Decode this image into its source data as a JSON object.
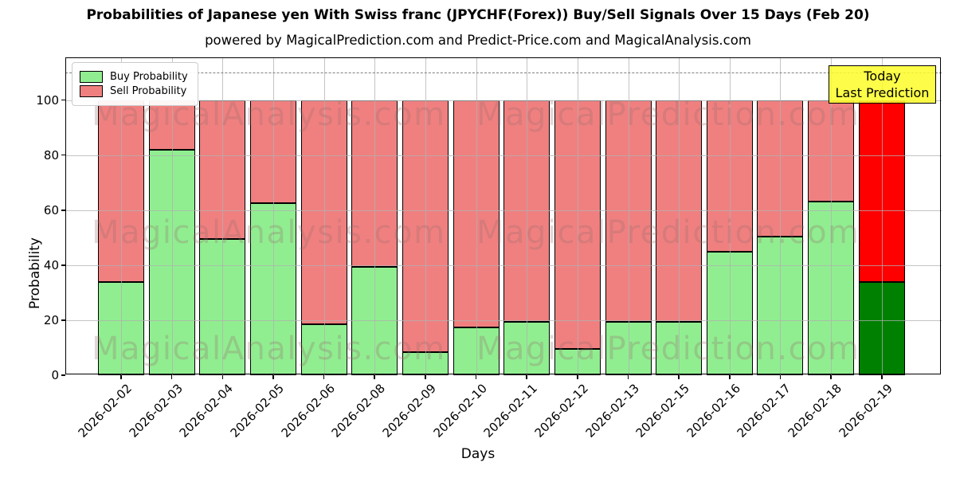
{
  "title": "Probabilities of Japanese yen With Swiss franc (JPYCHF(Forex)) Buy/Sell Signals Over 15 Days (Feb 20)",
  "subtitle": "powered by MagicalPrediction.com and Predict-Price.com and MagicalAnalysis.com",
  "axes": {
    "ylabel": "Probability",
    "xlabel": "Days",
    "yticks": [
      0,
      20,
      40,
      60,
      80,
      100
    ],
    "ylim": [
      0,
      115.5
    ],
    "dashed_line_y": 110,
    "grid": "on"
  },
  "legend": {
    "position": "upper-left",
    "items": [
      {
        "label": "Buy Probability",
        "color": "#90EE90"
      },
      {
        "label": "Sell Probability",
        "color": "#F08080"
      }
    ]
  },
  "annotation": {
    "line1": "Today",
    "line2": "Last Prediction",
    "bg_color": "#FDFD2D"
  },
  "watermarks": {
    "left_text": "MagicalAnalysis.com",
    "right_text": "MagicalPrediction.com"
  },
  "chart_data": {
    "type": "bar",
    "stacked": true,
    "categories": [
      "2026-02-02",
      "2026-02-03",
      "2026-02-04",
      "2026-02-05",
      "2026-02-06",
      "2026-02-08",
      "2026-02-09",
      "2026-02-10",
      "2026-02-11",
      "2026-02-12",
      "2026-02-13",
      "2026-02-15",
      "2026-02-16",
      "2026-02-17",
      "2026-02-18",
      "2026-02-19"
    ],
    "series": [
      {
        "name": "Buy Probability",
        "values": [
          34,
          82,
          49.5,
          62.5,
          18.5,
          39.5,
          8.5,
          17.5,
          19.5,
          9.5,
          19.5,
          19.5,
          45,
          50.5,
          63,
          34
        ]
      },
      {
        "name": "Sell Probability",
        "values": [
          66,
          18,
          50.5,
          37.5,
          81.5,
          60.5,
          91.5,
          82.5,
          80.5,
          90.5,
          80.5,
          80.5,
          55,
          49.5,
          37,
          66
        ]
      }
    ],
    "colors": {
      "buy": "#90EE90",
      "sell": "#F08080",
      "today_buy": "#008000",
      "today_sell": "#FF0000",
      "bar_edge": "#000000"
    },
    "today_index": 15,
    "title": "Probabilities of Japanese yen With Swiss franc (JPYCHF(Forex)) Buy/Sell Signals Over 15 Days (Feb 20)",
    "xlabel": "Days",
    "ylabel": "Probability"
  }
}
